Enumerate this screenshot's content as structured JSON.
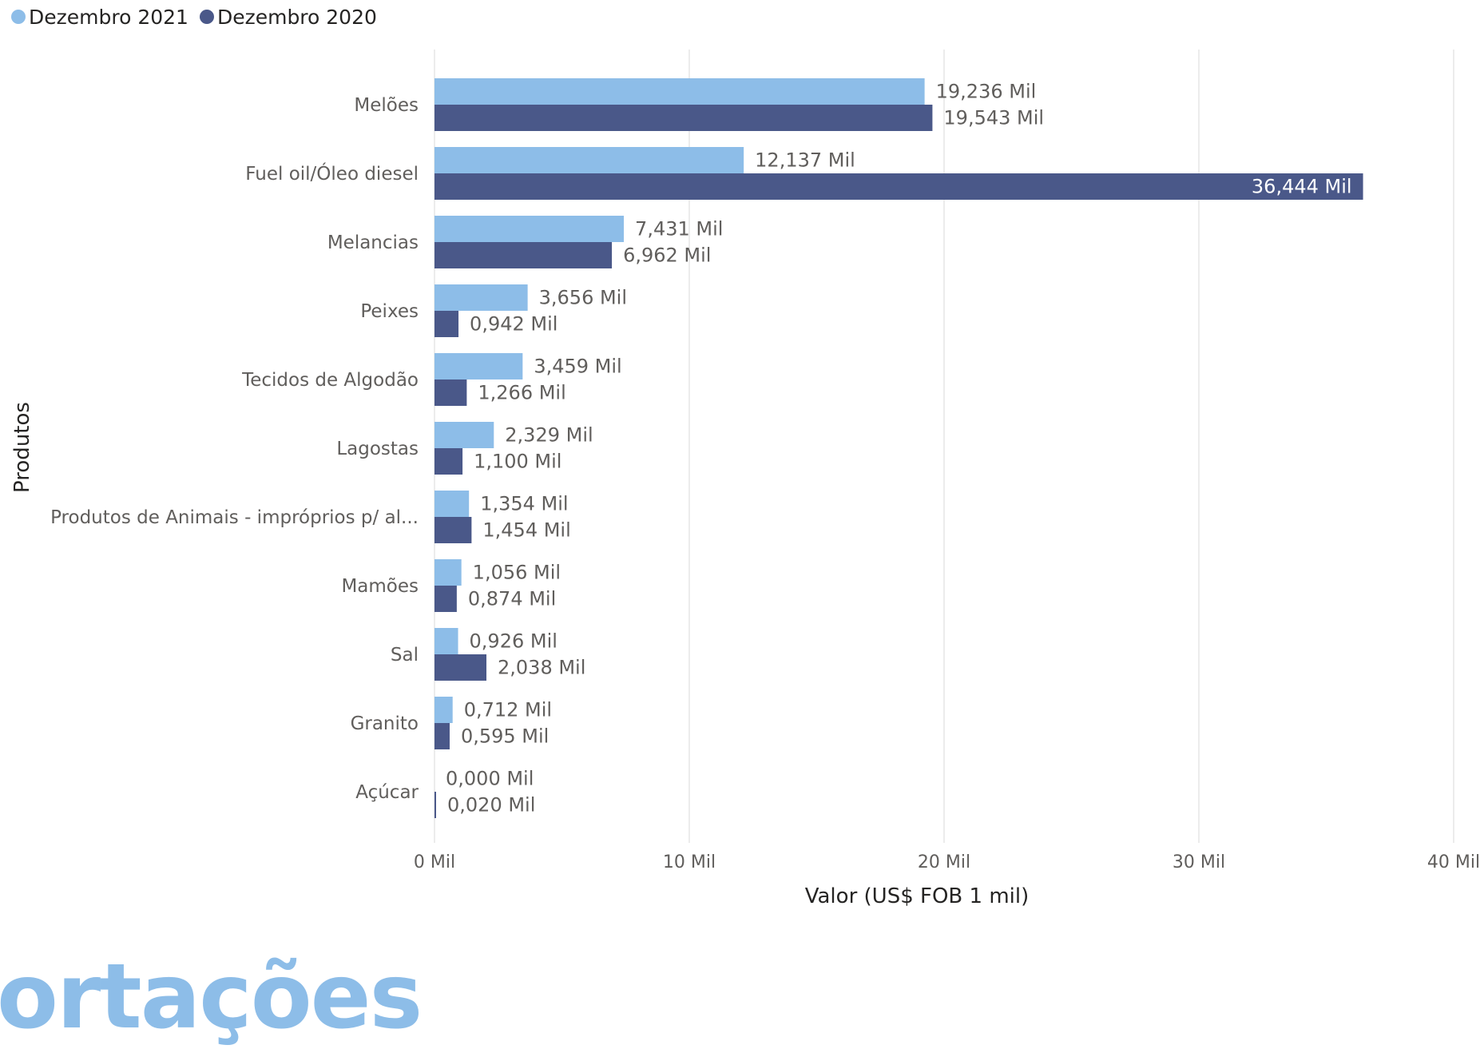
{
  "legend": {
    "series1": "Dezembro 2021",
    "series2": "Dezembro 2020"
  },
  "colors": {
    "series1": "#8dbde8",
    "series2": "#4a5889",
    "grid": "#e6e6e6",
    "label": "#605e5c",
    "axis_title": "#252423"
  },
  "watermark": "ortações",
  "chart_data": {
    "type": "bar",
    "orientation": "horizontal",
    "categories": [
      "Melões",
      "Fuel oil/Óleo diesel",
      "Melancias",
      "Peixes",
      "Tecidos de Algodão",
      "Lagostas",
      "Produtos de Animais - impróprios p/ al...",
      "Mamões",
      "Sal",
      "Granito",
      "Açúcar"
    ],
    "series": [
      {
        "name": "Dezembro 2021",
        "values": [
          19.236,
          12.137,
          7.431,
          3.656,
          3.459,
          2.329,
          1.354,
          1.056,
          0.926,
          0.712,
          0.0
        ],
        "labels": [
          "19,236 Mil",
          "12,137 Mil",
          "7,431 Mil",
          "3,656 Mil",
          "3,459 Mil",
          "2,329 Mil",
          "1,354 Mil",
          "1,056 Mil",
          "0,926 Mil",
          "0,712 Mil",
          "0,000 Mil"
        ]
      },
      {
        "name": "Dezembro 2020",
        "values": [
          19.543,
          36.444,
          6.962,
          0.942,
          1.266,
          1.1,
          1.454,
          0.874,
          2.038,
          0.595,
          0.02
        ],
        "labels": [
          "19,543 Mil",
          "36,444 Mil",
          "6,962 Mil",
          "0,942 Mil",
          "1,266 Mil",
          "1,100 Mil",
          "1,454 Mil",
          "0,874 Mil",
          "2,038 Mil",
          "0,595 Mil",
          "0,020 Mil"
        ]
      }
    ],
    "xlabel": "Valor (US$ FOB 1 mil)",
    "ylabel": "Produtos",
    "xlim": [
      0,
      40
    ],
    "xticks": [
      0,
      10,
      20,
      30,
      40
    ],
    "xtick_labels": [
      "0 Mil",
      "10 Mil",
      "20 Mil",
      "30 Mil",
      "40 Mil"
    ],
    "grid": true,
    "legend_position": "top-left"
  }
}
